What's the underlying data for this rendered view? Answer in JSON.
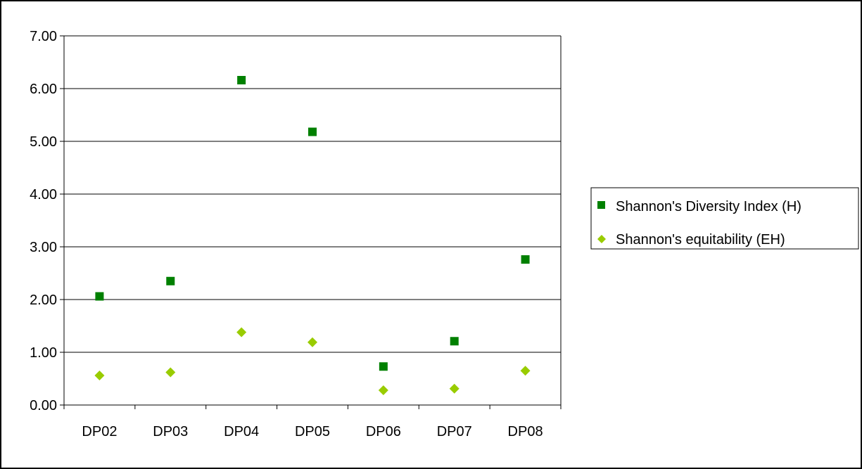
{
  "chart_data": {
    "type": "scatter",
    "title": "",
    "xlabel": "",
    "ylabel": "",
    "categories": [
      "DP02",
      "DP03",
      "DP04",
      "DP05",
      "DP06",
      "DP07",
      "DP08"
    ],
    "ylim": [
      0,
      7
    ],
    "yticks": [
      "0.00",
      "1.00",
      "2.00",
      "3.00",
      "4.00",
      "5.00",
      "6.00",
      "7.00"
    ],
    "grid": true,
    "legend_position": "right",
    "series": [
      {
        "name": "Shannon's Diversity Index (H)",
        "marker": "square",
        "color": "#008000",
        "values": [
          2.06,
          2.35,
          6.16,
          5.18,
          0.73,
          1.21,
          2.76
        ]
      },
      {
        "name": "Shannon's equitability (EH)",
        "marker": "diamond",
        "color": "#99CC00",
        "values": [
          0.56,
          0.62,
          1.38,
          1.19,
          0.28,
          0.31,
          0.65
        ]
      }
    ]
  }
}
